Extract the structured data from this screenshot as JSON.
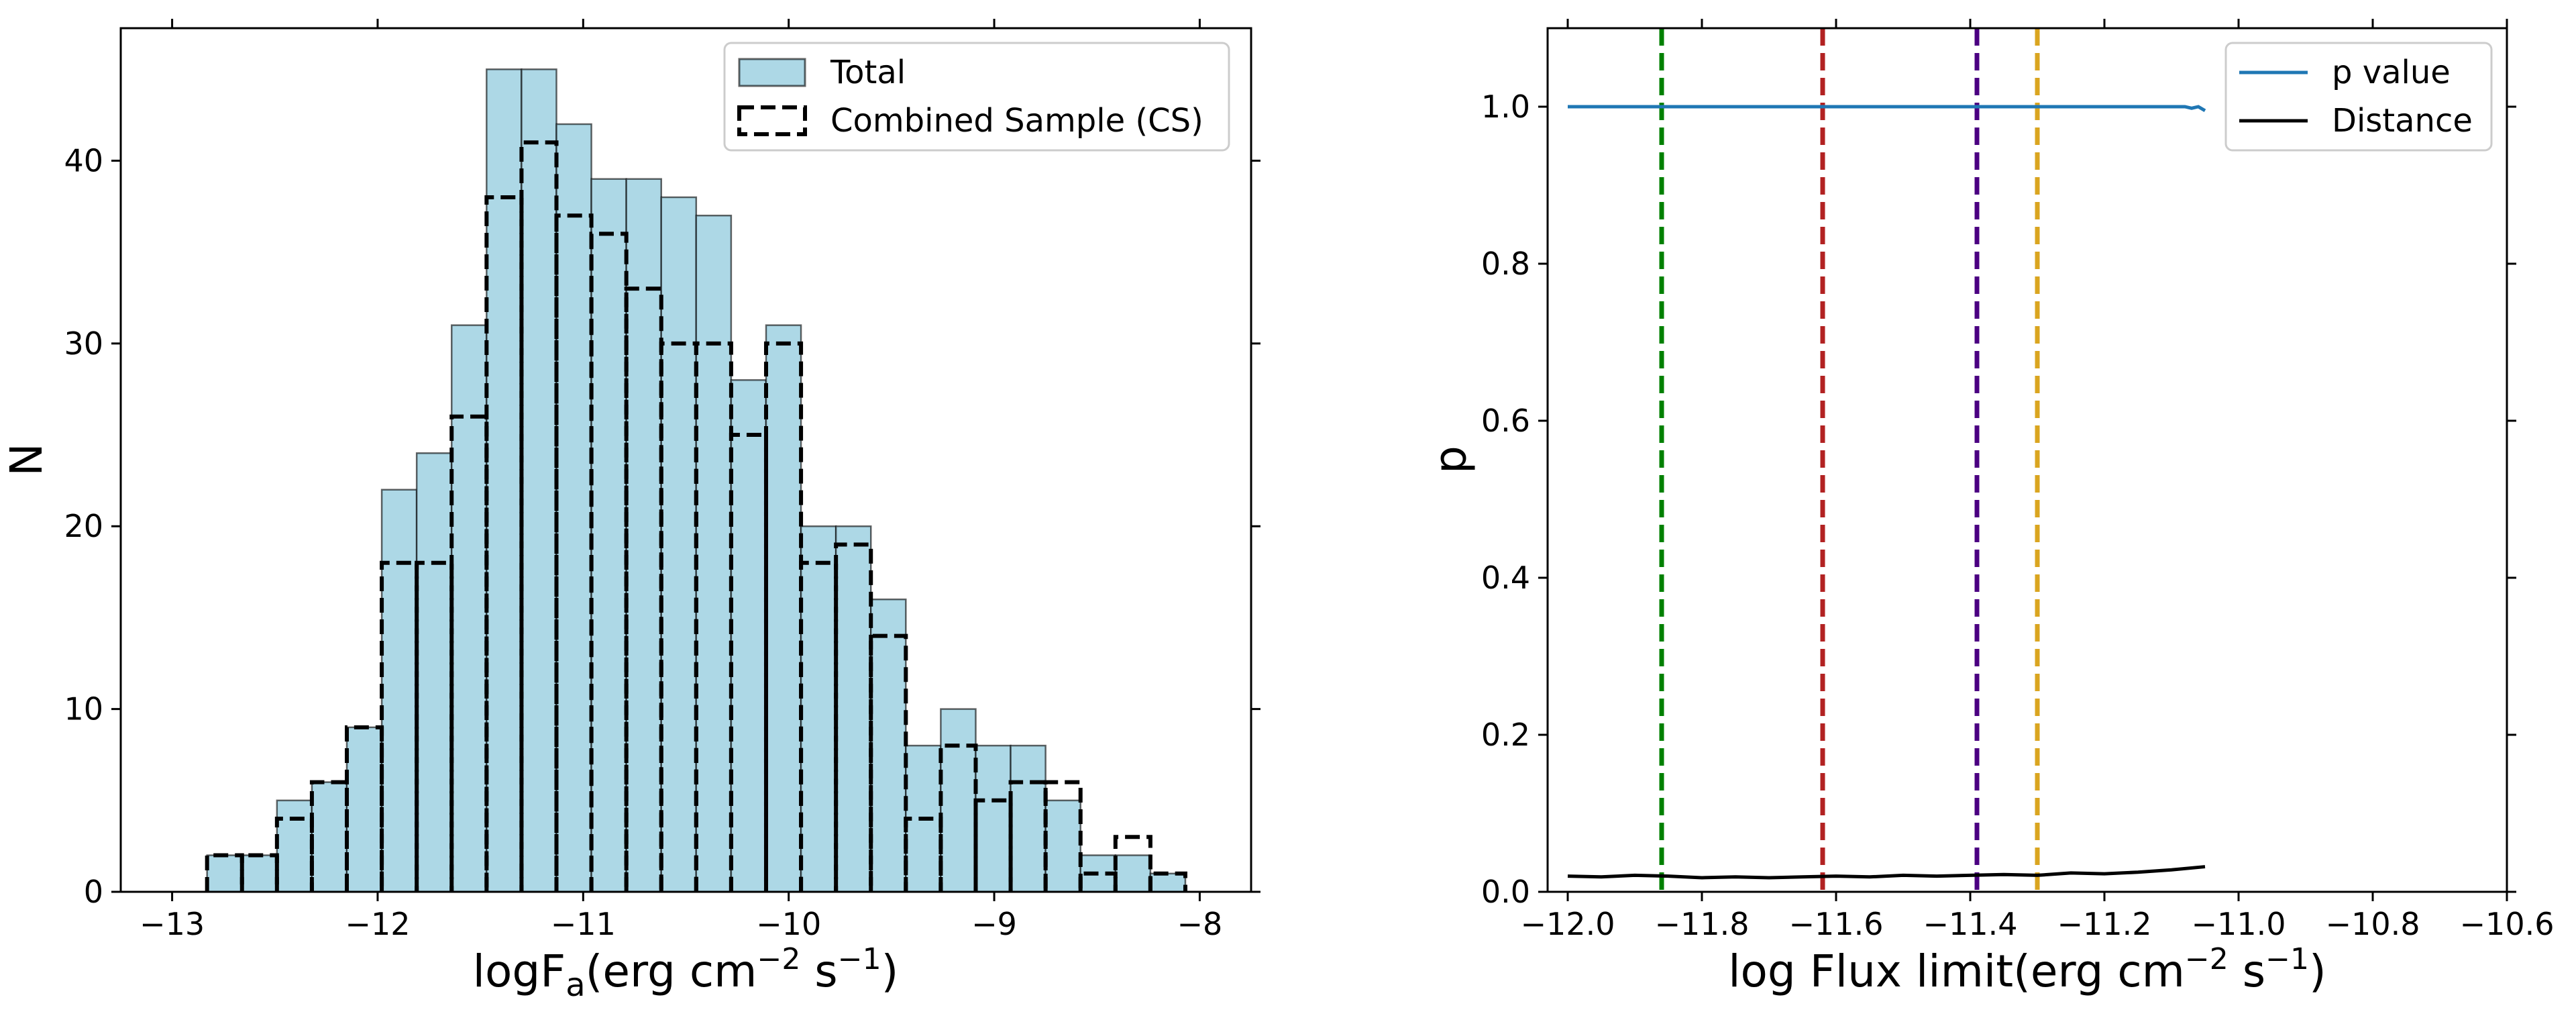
{
  "chart_data": [
    {
      "type": "histogram",
      "xlim": [
        -13.25,
        -7.75
      ],
      "ylim": [
        0,
        47.25
      ],
      "xticks": [
        -13,
        -12,
        -11,
        -10,
        -9,
        -8
      ],
      "yticks": [
        0,
        10,
        20,
        30,
        40
      ],
      "xlabel": "logFa(erg cm−2 s−1)",
      "ylabel": "N",
      "bin_edges": [
        -13.0,
        -12.83,
        -12.66,
        -12.49,
        -12.32,
        -12.15,
        -11.98,
        -11.81,
        -11.64,
        -11.47,
        -11.3,
        -11.13,
        -10.96,
        -10.79,
        -10.62,
        -10.45,
        -10.28,
        -10.11,
        -9.94,
        -9.77,
        -9.6,
        -9.43,
        -9.26,
        -9.09,
        -8.92,
        -8.75,
        -8.58,
        -8.41,
        -8.24,
        -8.07
      ],
      "series": [
        {
          "name": "Total",
          "style": "filled",
          "fill": "#add8e6",
          "values": [
            0,
            2,
            2,
            5,
            6,
            9,
            22,
            24,
            31,
            45,
            45,
            42,
            39,
            39,
            38,
            37,
            28,
            31,
            20,
            20,
            16,
            8,
            10,
            8,
            8,
            5,
            2,
            2,
            1
          ]
        },
        {
          "name": "Combined Sample (CS)",
          "style": "dashed-step",
          "color": "#000000",
          "values": [
            0,
            2,
            2,
            4,
            6,
            9,
            18,
            18,
            26,
            38,
            41,
            37,
            36,
            33,
            30,
            30,
            25,
            30,
            18,
            19,
            14,
            4,
            8,
            5,
            6,
            6,
            1,
            3,
            1
          ]
        }
      ],
      "legend": [
        {
          "label": "Total",
          "style": "patch"
        },
        {
          "label": "Combined Sample (CS)",
          "style": "dashed-patch"
        }
      ],
      "legend_position": "top-right"
    },
    {
      "type": "line",
      "xlim": [
        -12.03,
        -10.6
      ],
      "ylim": [
        0,
        1.1
      ],
      "xticks": [
        -12.0,
        -11.8,
        -11.6,
        -11.4,
        -11.2,
        -11.0,
        -10.8,
        -10.6
      ],
      "xticklabels": [
        "−12.0",
        "−11.8",
        "−11.6",
        "−11.4",
        "−11.2",
        "−11.0",
        "−10.8",
        "−10.6"
      ],
      "yticks": [
        0.0,
        0.2,
        0.4,
        0.6,
        0.8,
        1.0
      ],
      "yticklabels": [
        "0.0",
        "0.2",
        "0.4",
        "0.6",
        "0.8",
        "1.0"
      ],
      "xlabel": "log Flux limit(erg cm−2 s−1)",
      "ylabel": "p",
      "series": [
        {
          "name": "p value",
          "color": "#1f77b4",
          "x": [
            -12.0,
            -11.8,
            -11.6,
            -11.4,
            -11.2,
            -11.08,
            -11.07,
            -11.06,
            -11.05
          ],
          "y": [
            1.0,
            1.0,
            1.0,
            1.0,
            1.0,
            1.0,
            0.998,
            1.0,
            0.995
          ]
        },
        {
          "name": "Distance",
          "color": "#000000",
          "x": [
            -12.0,
            -11.95,
            -11.9,
            -11.85,
            -11.8,
            -11.75,
            -11.7,
            -11.65,
            -11.6,
            -11.55,
            -11.5,
            -11.45,
            -11.4,
            -11.35,
            -11.3,
            -11.25,
            -11.2,
            -11.15,
            -11.1,
            -11.05
          ],
          "y": [
            0.02,
            0.019,
            0.021,
            0.02,
            0.018,
            0.019,
            0.018,
            0.019,
            0.02,
            0.019,
            0.021,
            0.02,
            0.021,
            0.022,
            0.021,
            0.024,
            0.023,
            0.025,
            0.028,
            0.032
          ]
        }
      ],
      "vlines": [
        {
          "x": -11.86,
          "color": "#008000"
        },
        {
          "x": -11.62,
          "color": "#b22222"
        },
        {
          "x": -11.39,
          "color": "#4b0082"
        },
        {
          "x": -11.3,
          "color": "#daa520"
        }
      ],
      "legend": [
        {
          "label": "p value",
          "color": "#1f77b4"
        },
        {
          "label": "Distance",
          "color": "#000000"
        }
      ],
      "legend_position": "top-right"
    }
  ]
}
